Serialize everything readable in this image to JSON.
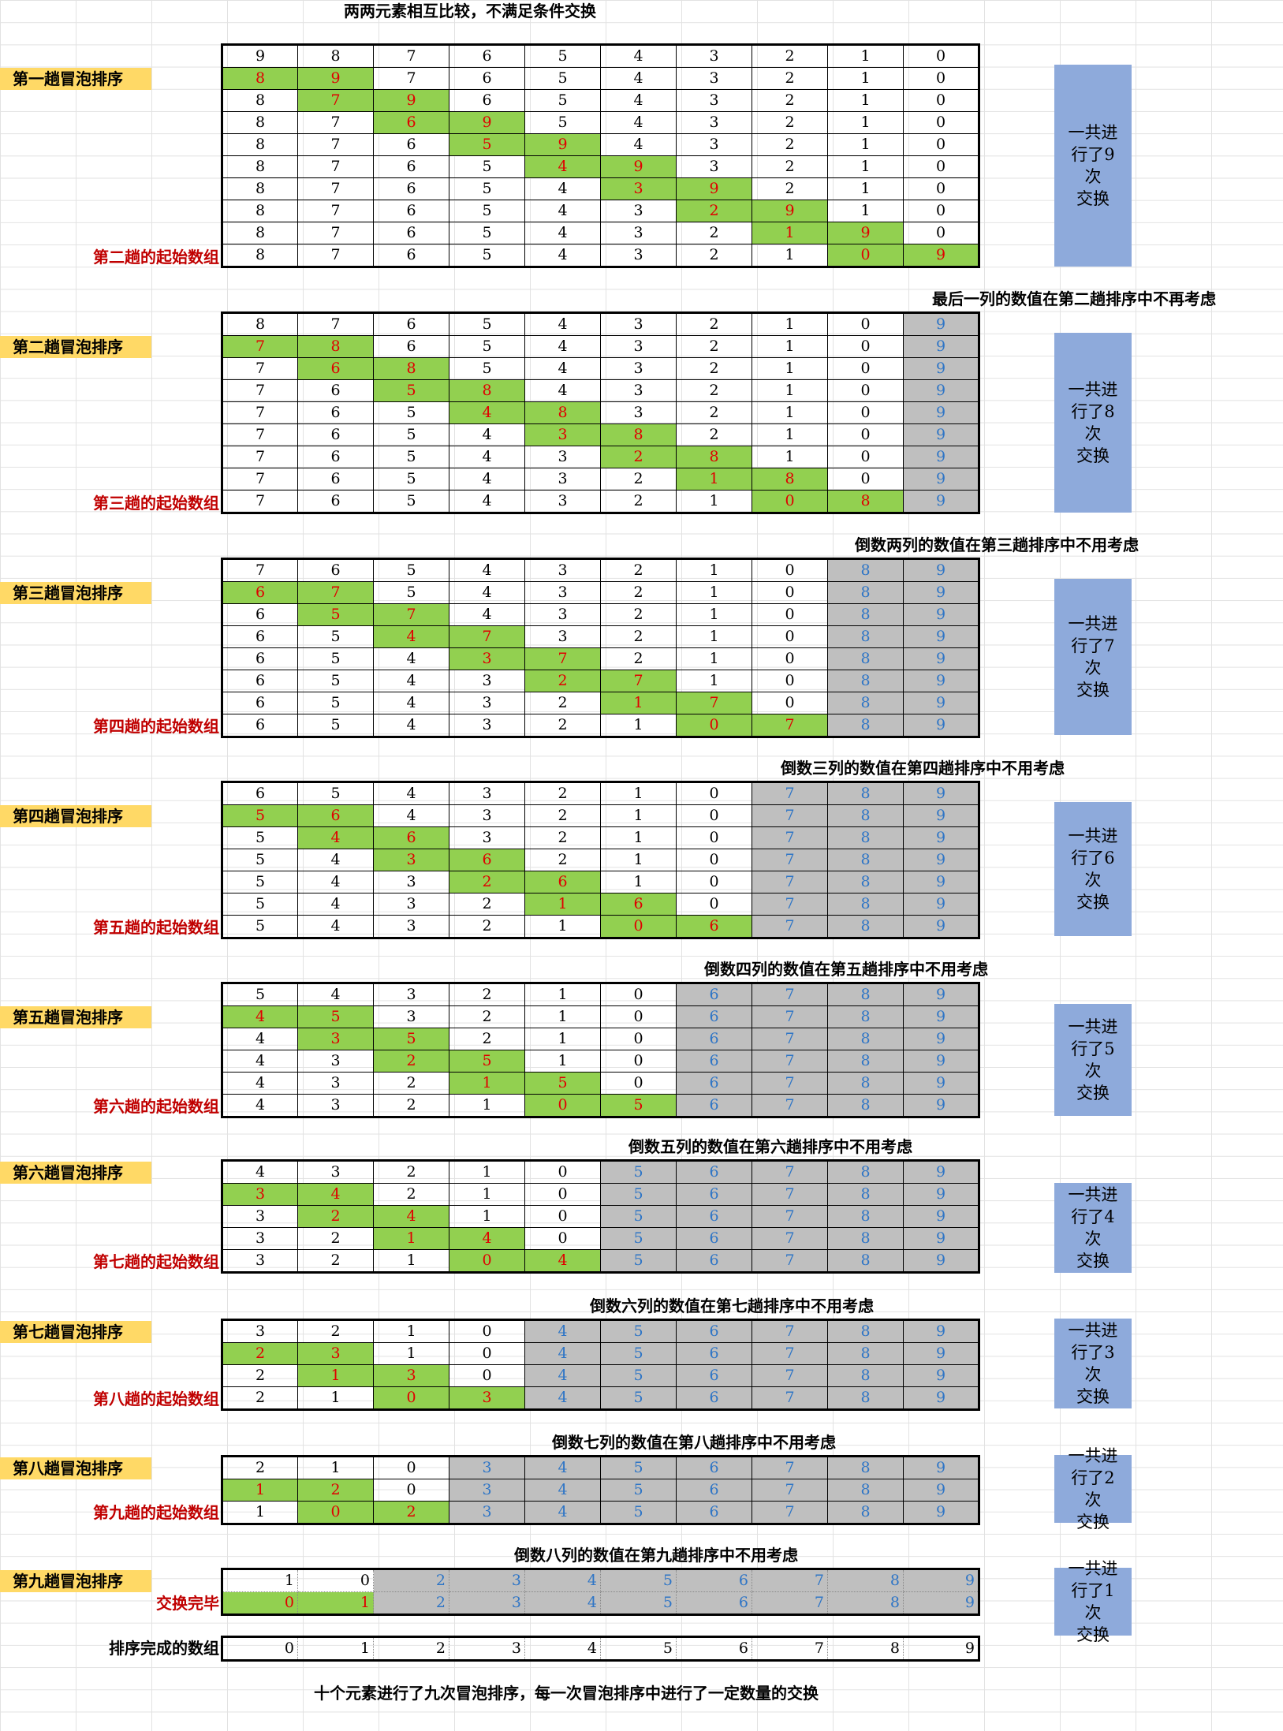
{
  "top_title": "两两元素相互比较，不满足条件交换",
  "bottom_title": "十个元素进行了九次冒泡排序，每一次冒泡排序中进行了一定数量的交换",
  "final_label": "排序完成的数组",
  "final_row": [
    "0",
    "1",
    "2",
    "3",
    "4",
    "5",
    "6",
    "7",
    "8",
    "9"
  ],
  "colors": {
    "green": "#92d050",
    "red": "#e00000",
    "gray": "#bfbfbf",
    "blue": "#2e75c6",
    "yellow": "#ffd966",
    "summary": "#8eaadb"
  },
  "passes": [
    {
      "label": "第一趟冒泡排序",
      "note": "",
      "start_label": "第二趟的起始数组",
      "summary_line1": "一共进",
      "summary_line2": "行了9次",
      "summary_line3": "交换",
      "rows": [
        [
          "9",
          "8",
          "7",
          "6",
          "5",
          "4",
          "3",
          "2",
          "1",
          "0"
        ],
        [
          "8",
          "9",
          "7",
          "6",
          "5",
          "4",
          "3",
          "2",
          "1",
          "0"
        ],
        [
          "8",
          "7",
          "9",
          "6",
          "5",
          "4",
          "3",
          "2",
          "1",
          "0"
        ],
        [
          "8",
          "7",
          "6",
          "9",
          "5",
          "4",
          "3",
          "2",
          "1",
          "0"
        ],
        [
          "8",
          "7",
          "6",
          "5",
          "9",
          "4",
          "3",
          "2",
          "1",
          "0"
        ],
        [
          "8",
          "7",
          "6",
          "5",
          "4",
          "9",
          "3",
          "2",
          "1",
          "0"
        ],
        [
          "8",
          "7",
          "6",
          "5",
          "4",
          "3",
          "9",
          "2",
          "1",
          "0"
        ],
        [
          "8",
          "7",
          "6",
          "5",
          "4",
          "3",
          "2",
          "9",
          "1",
          "0"
        ],
        [
          "8",
          "7",
          "6",
          "5",
          "4",
          "3",
          "2",
          "1",
          "9",
          "0"
        ],
        [
          "8",
          "7",
          "6",
          "5",
          "4",
          "3",
          "2",
          "1",
          "0",
          "9"
        ]
      ]
    },
    {
      "label": "第二趟冒泡排序",
      "note": "最后一列的数值在第二趟排序中不再考虑",
      "start_label": "第三趟的起始数组",
      "summary_line1": "一共进",
      "summary_line2": "行了8次",
      "summary_line3": "交换",
      "rows": [
        [
          "8",
          "7",
          "6",
          "5",
          "4",
          "3",
          "2",
          "1",
          "0",
          "9"
        ],
        [
          "7",
          "8",
          "6",
          "5",
          "4",
          "3",
          "2",
          "1",
          "0",
          "9"
        ],
        [
          "7",
          "6",
          "8",
          "5",
          "4",
          "3",
          "2",
          "1",
          "0",
          "9"
        ],
        [
          "7",
          "6",
          "5",
          "8",
          "4",
          "3",
          "2",
          "1",
          "0",
          "9"
        ],
        [
          "7",
          "6",
          "5",
          "4",
          "8",
          "3",
          "2",
          "1",
          "0",
          "9"
        ],
        [
          "7",
          "6",
          "5",
          "4",
          "3",
          "8",
          "2",
          "1",
          "0",
          "9"
        ],
        [
          "7",
          "6",
          "5",
          "4",
          "3",
          "2",
          "8",
          "1",
          "0",
          "9"
        ],
        [
          "7",
          "6",
          "5",
          "4",
          "3",
          "2",
          "1",
          "8",
          "0",
          "9"
        ],
        [
          "7",
          "6",
          "5",
          "4",
          "3",
          "2",
          "1",
          "0",
          "8",
          "9"
        ]
      ]
    },
    {
      "label": "第三趟冒泡排序",
      "note": "倒数两列的数值在第三趟排序中不用考虑",
      "start_label": "第四趟的起始数组",
      "summary_line1": "一共进",
      "summary_line2": "行了7次",
      "summary_line3": "交换",
      "rows": [
        [
          "7",
          "6",
          "5",
          "4",
          "3",
          "2",
          "1",
          "0",
          "8",
          "9"
        ],
        [
          "6",
          "7",
          "5",
          "4",
          "3",
          "2",
          "1",
          "0",
          "8",
          "9"
        ],
        [
          "6",
          "5",
          "7",
          "4",
          "3",
          "2",
          "1",
          "0",
          "8",
          "9"
        ],
        [
          "6",
          "5",
          "4",
          "7",
          "3",
          "2",
          "1",
          "0",
          "8",
          "9"
        ],
        [
          "6",
          "5",
          "4",
          "3",
          "7",
          "2",
          "1",
          "0",
          "8",
          "9"
        ],
        [
          "6",
          "5",
          "4",
          "3",
          "2",
          "7",
          "1",
          "0",
          "8",
          "9"
        ],
        [
          "6",
          "5",
          "4",
          "3",
          "2",
          "1",
          "7",
          "0",
          "8",
          "9"
        ],
        [
          "6",
          "5",
          "4",
          "3",
          "2",
          "1",
          "0",
          "7",
          "8",
          "9"
        ]
      ]
    },
    {
      "label": "第四趟冒泡排序",
      "note": "倒数三列的数值在第四趟排序中不用考虑",
      "start_label": "第五趟的起始数组",
      "summary_line1": "一共进",
      "summary_line2": "行了6次",
      "summary_line3": "交换",
      "rows": [
        [
          "6",
          "5",
          "4",
          "3",
          "2",
          "1",
          "0",
          "7",
          "8",
          "9"
        ],
        [
          "5",
          "6",
          "4",
          "3",
          "2",
          "1",
          "0",
          "7",
          "8",
          "9"
        ],
        [
          "5",
          "4",
          "6",
          "3",
          "2",
          "1",
          "0",
          "7",
          "8",
          "9"
        ],
        [
          "5",
          "4",
          "3",
          "6",
          "2",
          "1",
          "0",
          "7",
          "8",
          "9"
        ],
        [
          "5",
          "4",
          "3",
          "2",
          "6",
          "1",
          "0",
          "7",
          "8",
          "9"
        ],
        [
          "5",
          "4",
          "3",
          "2",
          "1",
          "6",
          "0",
          "7",
          "8",
          "9"
        ],
        [
          "5",
          "4",
          "3",
          "2",
          "1",
          "0",
          "6",
          "7",
          "8",
          "9"
        ]
      ]
    },
    {
      "label": "第五趟冒泡排序",
      "note": "倒数四列的数值在第五趟排序中不用考虑",
      "start_label": "第六趟的起始数组",
      "summary_line1": "一共进",
      "summary_line2": "行了5次",
      "summary_line3": "交换",
      "rows": [
        [
          "5",
          "4",
          "3",
          "2",
          "1",
          "0",
          "6",
          "7",
          "8",
          "9"
        ],
        [
          "4",
          "5",
          "3",
          "2",
          "1",
          "0",
          "6",
          "7",
          "8",
          "9"
        ],
        [
          "4",
          "3",
          "5",
          "2",
          "1",
          "0",
          "6",
          "7",
          "8",
          "9"
        ],
        [
          "4",
          "3",
          "2",
          "5",
          "1",
          "0",
          "6",
          "7",
          "8",
          "9"
        ],
        [
          "4",
          "3",
          "2",
          "1",
          "5",
          "0",
          "6",
          "7",
          "8",
          "9"
        ],
        [
          "4",
          "3",
          "2",
          "1",
          "0",
          "5",
          "6",
          "7",
          "8",
          "9"
        ]
      ]
    },
    {
      "label": "第六趟冒泡排序",
      "note": "倒数五列的数值在第六趟排序中不用考虑",
      "start_label": "第七趟的起始数组",
      "summary_line1": "一共进",
      "summary_line2": "行了4次",
      "summary_line3": "交换",
      "rows": [
        [
          "4",
          "3",
          "2",
          "1",
          "0",
          "5",
          "6",
          "7",
          "8",
          "9"
        ],
        [
          "3",
          "4",
          "2",
          "1",
          "0",
          "5",
          "6",
          "7",
          "8",
          "9"
        ],
        [
          "3",
          "2",
          "4",
          "1",
          "0",
          "5",
          "6",
          "7",
          "8",
          "9"
        ],
        [
          "3",
          "2",
          "1",
          "4",
          "0",
          "5",
          "6",
          "7",
          "8",
          "9"
        ],
        [
          "3",
          "2",
          "1",
          "0",
          "4",
          "5",
          "6",
          "7",
          "8",
          "9"
        ]
      ]
    },
    {
      "label": "第七趟冒泡排序",
      "note": "倒数六列的数值在第七趟排序中不用考虑",
      "start_label": "第八趟的起始数组",
      "summary_line1": "一共进",
      "summary_line2": "行了3次",
      "summary_line3": "交换",
      "rows": [
        [
          "3",
          "2",
          "1",
          "0",
          "4",
          "5",
          "6",
          "7",
          "8",
          "9"
        ],
        [
          "2",
          "3",
          "1",
          "0",
          "4",
          "5",
          "6",
          "7",
          "8",
          "9"
        ],
        [
          "2",
          "1",
          "3",
          "0",
          "4",
          "5",
          "6",
          "7",
          "8",
          "9"
        ],
        [
          "2",
          "1",
          "0",
          "3",
          "4",
          "5",
          "6",
          "7",
          "8",
          "9"
        ]
      ]
    },
    {
      "label": "第八趟冒泡排序",
      "note": "倒数七列的数值在第八趟排序中不用考虑",
      "start_label": "第九趟的起始数组",
      "summary_line1": "一共进",
      "summary_line2": "行了2次",
      "summary_line3": "交换",
      "rows": [
        [
          "2",
          "1",
          "0",
          "3",
          "4",
          "5",
          "6",
          "7",
          "8",
          "9"
        ],
        [
          "1",
          "2",
          "0",
          "3",
          "4",
          "5",
          "6",
          "7",
          "8",
          "9"
        ],
        [
          "1",
          "0",
          "2",
          "3",
          "4",
          "5",
          "6",
          "7",
          "8",
          "9"
        ]
      ]
    },
    {
      "label": "第九趟冒泡排序",
      "note": "倒数八列的数值在第九趟排序中不用考虑",
      "start_label": "交换完毕",
      "summary_line1": "一共进",
      "summary_line2": "行了1次",
      "summary_line3": "交换",
      "rows": [
        [
          "1",
          "0",
          "2",
          "3",
          "4",
          "5",
          "6",
          "7",
          "8",
          "9"
        ],
        [
          "0",
          "1",
          "2",
          "3",
          "4",
          "5",
          "6",
          "7",
          "8",
          "9"
        ]
      ]
    }
  ]
}
